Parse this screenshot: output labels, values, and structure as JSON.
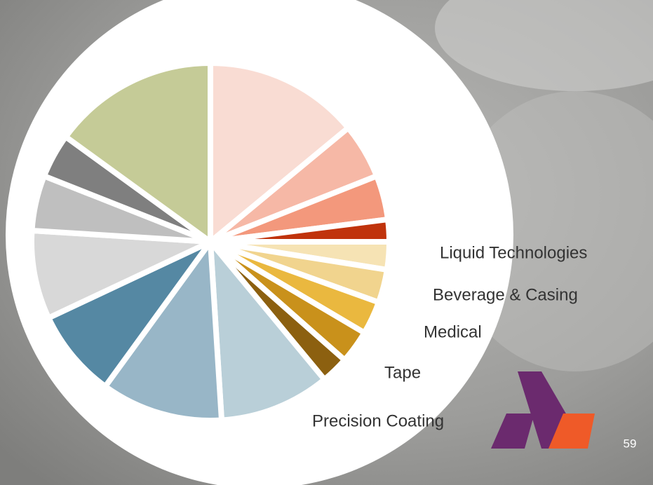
{
  "chart_data": {
    "type": "pie",
    "categories": [
      null,
      null,
      null,
      null,
      "Liquid Technologies",
      "Beverage & Casing",
      "Medical",
      "Tape",
      "Precision Coating",
      null,
      null,
      null,
      null,
      null,
      null,
      null
    ],
    "values": [
      14,
      5,
      4,
      2,
      2.5,
      3,
      3,
      3,
      2.5,
      10,
      11,
      8,
      8,
      5,
      4,
      15
    ],
    "colors": [
      "#f9dcd3",
      "#f6b8a6",
      "#f3987c",
      "#c0330c",
      "#f6e3b4",
      "#f1d48e",
      "#eab83f",
      "#c9911b",
      "#8c6010",
      "#b9cfd8",
      "#98b6c7",
      "#5588a3",
      "#d8d8d8",
      "#bfbfbf",
      "#7f7f7f",
      "#c5cb97"
    ]
  },
  "page_number": "59"
}
